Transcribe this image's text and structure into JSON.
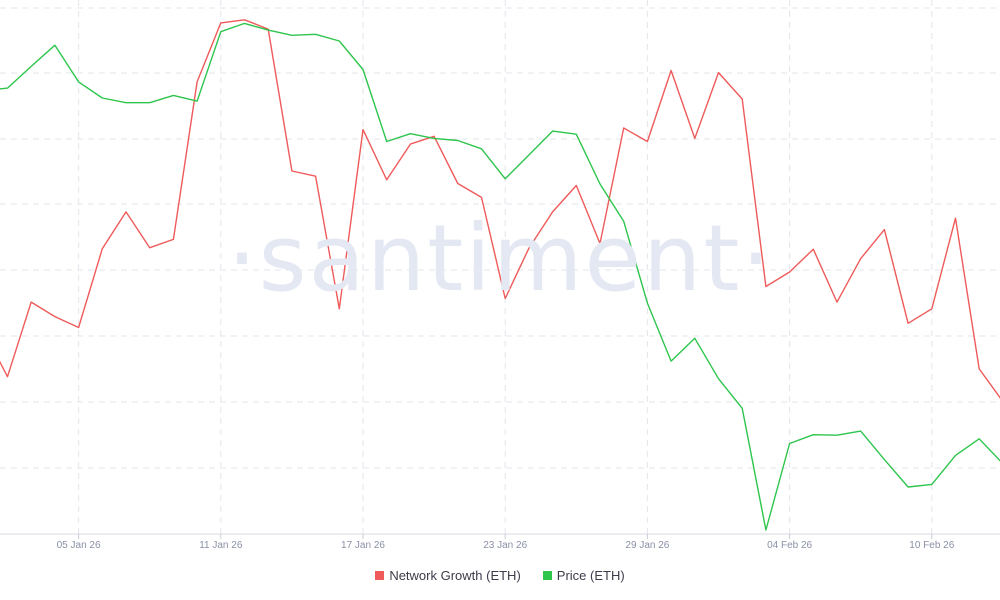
{
  "watermark": "·santiment·",
  "chart_data": {
    "type": "line",
    "x_start": "2026-01-01",
    "x_ticks": [
      "05 Jan 26",
      "11 Jan 26",
      "17 Jan 26",
      "23 Jan 26",
      "29 Jan 26",
      "04 Feb 26",
      "10 Feb 26"
    ],
    "grid": true,
    "legend_position": "bottom-center",
    "series": [
      {
        "name": "Network Growth (ETH)",
        "color": "#ef5a5a",
        "normalized_values": [
          0.385,
          0.296,
          0.44,
          0.412,
          0.391,
          0.543,
          0.614,
          0.545,
          0.561,
          0.865,
          0.979,
          0.985,
          0.967,
          0.693,
          0.683,
          0.427,
          0.773,
          0.676,
          0.745,
          0.76,
          0.669,
          0.642,
          0.447,
          0.544,
          0.614,
          0.665,
          0.553,
          0.776,
          0.75,
          0.887,
          0.756,
          0.883,
          0.832,
          0.47,
          0.498,
          0.542,
          0.44,
          0.524,
          0.58,
          0.399,
          0.427,
          0.602,
          0.311,
          0.248
        ]
      },
      {
        "name": "Price (ETH)",
        "color": "#2ec54d",
        "normalized_values": [
          0.848,
          0.853,
          0.895,
          0.936,
          0.865,
          0.834,
          0.825,
          0.825,
          0.839,
          0.828,
          0.962,
          0.978,
          0.965,
          0.955,
          0.957,
          0.944,
          0.889,
          0.75,
          0.765,
          0.756,
          0.752,
          0.736,
          0.678,
          0.724,
          0.77,
          0.764,
          0.668,
          0.596,
          0.438,
          0.326,
          0.37,
          0.292,
          0.235,
          0.0,
          0.167,
          0.184,
          0.183,
          0.191,
          0.136,
          0.083,
          0.088,
          0.144,
          0.176,
          0.128
        ]
      }
    ]
  }
}
